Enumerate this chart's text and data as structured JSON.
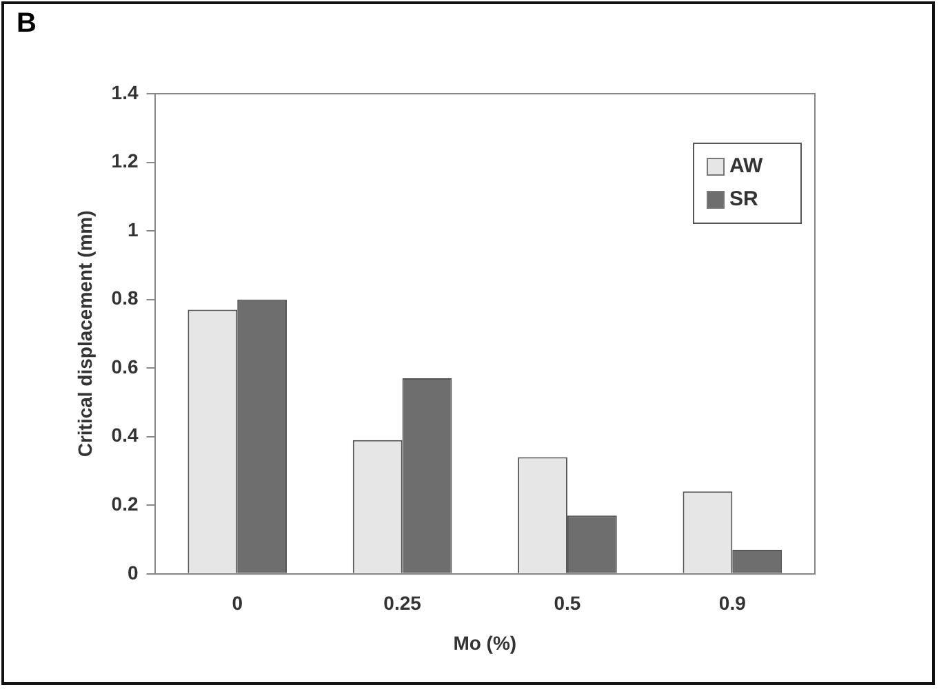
{
  "chart_data": {
    "type": "bar",
    "categories": [
      "0",
      "0.25",
      "0.5",
      "0.9"
    ],
    "series": [
      {
        "name": "AW",
        "color": "#e6e6e6",
        "values": [
          0.77,
          0.39,
          0.34,
          0.24
        ]
      },
      {
        "name": "SR",
        "color": "#6e6e6e",
        "values": [
          0.8,
          0.57,
          0.17,
          0.07
        ]
      }
    ],
    "xlabel": "Mo (%)",
    "ylabel": "Critical displacement (mm)",
    "ylim": [
      0,
      1.4
    ],
    "yticks": [
      0,
      0.2,
      0.4,
      0.6,
      0.8,
      1,
      1.2,
      1.4
    ],
    "annotations": [
      "B"
    ],
    "grid": false,
    "legend": "top right"
  }
}
